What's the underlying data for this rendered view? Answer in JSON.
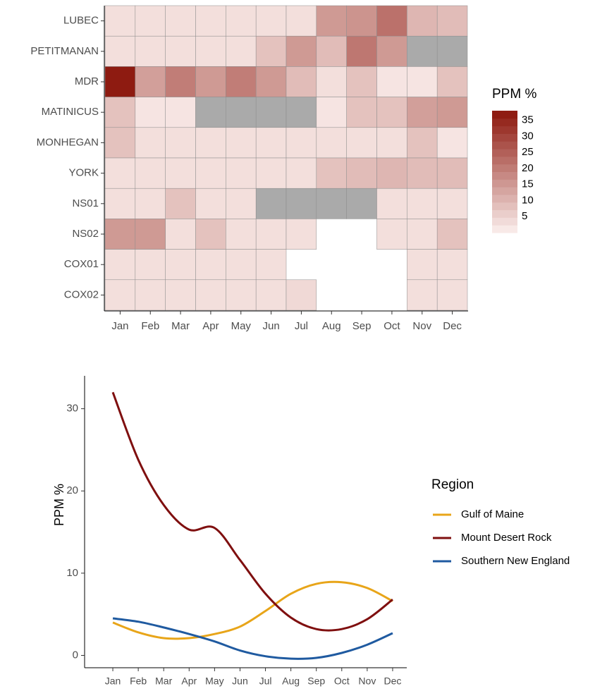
{
  "chart_data": [
    {
      "type": "heatmap",
      "categories": [
        "Jan",
        "Feb",
        "Mar",
        "Apr",
        "May",
        "Jun",
        "Jul",
        "Aug",
        "Sep",
        "Oct",
        "Nov",
        "Dec"
      ],
      "rows": [
        "LUBEC",
        "PETITMANAN",
        "MDR",
        "MATINICUS",
        "MONHEGAN",
        "YORK",
        "NS01",
        "NS02",
        "COX01",
        "COX02"
      ],
      "legend_title": "PPM %",
      "legend_ticks": [
        5,
        10,
        15,
        20,
        25,
        30,
        35
      ],
      "colorscale": {
        "low": "#fcf0ee",
        "high": "#8b150b",
        "lim": [
          0,
          38
        ]
      },
      "na_color": "#aaaaaa",
      "cells": [
        [
          "Jan",
          "LUBEC",
          3
        ],
        [
          "Feb",
          "LUBEC",
          3
        ],
        [
          "Mar",
          "LUBEC",
          3
        ],
        [
          "Apr",
          "LUBEC",
          3
        ],
        [
          "May",
          "LUBEC",
          3
        ],
        [
          "Jun",
          "LUBEC",
          3
        ],
        [
          "Jul",
          "LUBEC",
          3
        ],
        [
          "Aug",
          "LUBEC",
          15
        ],
        [
          "Sep",
          "LUBEC",
          16
        ],
        [
          "Oct",
          "LUBEC",
          22
        ],
        [
          "Nov",
          "LUBEC",
          10
        ],
        [
          "Dec",
          "LUBEC",
          9
        ],
        [
          "Jan",
          "PETITMANAN",
          3
        ],
        [
          "Feb",
          "PETITMANAN",
          3
        ],
        [
          "Mar",
          "PETITMANAN",
          3
        ],
        [
          "Apr",
          "PETITMANAN",
          3
        ],
        [
          "May",
          "PETITMANAN",
          3
        ],
        [
          "Jun",
          "PETITMANAN",
          8
        ],
        [
          "Jul",
          "PETITMANAN",
          15
        ],
        [
          "Aug",
          "PETITMANAN",
          9
        ],
        [
          "Sep",
          "PETITMANAN",
          21
        ],
        [
          "Oct",
          "PETITMANAN",
          15
        ],
        [
          "Nov",
          "PETITMANAN",
          null
        ],
        [
          "Dec",
          "PETITMANAN",
          null
        ],
        [
          "Jan",
          "MDR",
          37
        ],
        [
          "Feb",
          "MDR",
          14
        ],
        [
          "Mar",
          "MDR",
          20
        ],
        [
          "Apr",
          "MDR",
          15
        ],
        [
          "May",
          "MDR",
          20
        ],
        [
          "Jun",
          "MDR",
          15
        ],
        [
          "Jul",
          "MDR",
          9
        ],
        [
          "Aug",
          "MDR",
          3
        ],
        [
          "Sep",
          "MDR",
          8
        ],
        [
          "Oct",
          "MDR",
          2
        ],
        [
          "Nov",
          "MDR",
          2
        ],
        [
          "Dec",
          "MDR",
          8
        ],
        [
          "Jan",
          "MATINICUS",
          8
        ],
        [
          "Feb",
          "MATINICUS",
          2
        ],
        [
          "Mar",
          "MATINICUS",
          2
        ],
        [
          "Apr",
          "MATINICUS",
          null
        ],
        [
          "May",
          "MATINICUS",
          null
        ],
        [
          "Jun",
          "MATINICUS",
          null
        ],
        [
          "Jul",
          "MATINICUS",
          null
        ],
        [
          "Aug",
          "MATINICUS",
          2
        ],
        [
          "Sep",
          "MATINICUS",
          8
        ],
        [
          "Oct",
          "MATINICUS",
          8
        ],
        [
          "Nov",
          "MATINICUS",
          14
        ],
        [
          "Dec",
          "MATINICUS",
          15
        ],
        [
          "Jan",
          "MONHEGAN",
          8
        ],
        [
          "Feb",
          "MONHEGAN",
          3
        ],
        [
          "Mar",
          "MONHEGAN",
          3
        ],
        [
          "Apr",
          "MONHEGAN",
          3
        ],
        [
          "May",
          "MONHEGAN",
          3
        ],
        [
          "Jun",
          "MONHEGAN",
          3
        ],
        [
          "Jul",
          "MONHEGAN",
          3
        ],
        [
          "Aug",
          "MONHEGAN",
          3
        ],
        [
          "Sep",
          "MONHEGAN",
          3
        ],
        [
          "Oct",
          "MONHEGAN",
          3
        ],
        [
          "Nov",
          "MONHEGAN",
          8
        ],
        [
          "Dec",
          "MONHEGAN",
          2
        ],
        [
          "Jan",
          "YORK",
          3
        ],
        [
          "Feb",
          "YORK",
          3
        ],
        [
          "Mar",
          "YORK",
          3
        ],
        [
          "Apr",
          "YORK",
          3
        ],
        [
          "May",
          "YORK",
          3
        ],
        [
          "Jun",
          "YORK",
          3
        ],
        [
          "Jul",
          "YORK",
          3
        ],
        [
          "Aug",
          "YORK",
          8
        ],
        [
          "Sep",
          "YORK",
          9
        ],
        [
          "Oct",
          "YORK",
          10
        ],
        [
          "Nov",
          "YORK",
          9
        ],
        [
          "Dec",
          "YORK",
          9
        ],
        [
          "Jan",
          "NS01",
          3
        ],
        [
          "Feb",
          "NS01",
          3
        ],
        [
          "Mar",
          "NS01",
          8
        ],
        [
          "Apr",
          "NS01",
          3
        ],
        [
          "May",
          "NS01",
          3
        ],
        [
          "Jun",
          "NS01",
          null
        ],
        [
          "Jul",
          "NS01",
          null
        ],
        [
          "Aug",
          "NS01",
          null
        ],
        [
          "Sep",
          "NS01",
          null
        ],
        [
          "Oct",
          "NS01",
          3
        ],
        [
          "Nov",
          "NS01",
          3
        ],
        [
          "Dec",
          "NS01",
          3
        ],
        [
          "Jan",
          "NS02",
          15
        ],
        [
          "Feb",
          "NS02",
          15
        ],
        [
          "Mar",
          "NS02",
          3
        ],
        [
          "Apr",
          "NS02",
          8
        ],
        [
          "May",
          "NS02",
          3
        ],
        [
          "Jun",
          "NS02",
          3
        ],
        [
          "Jul",
          "NS02",
          3
        ],
        [
          "Oct",
          "NS02",
          3
        ],
        [
          "Nov",
          "NS02",
          3
        ],
        [
          "Dec",
          "NS02",
          8
        ],
        [
          "Jan",
          "COX01",
          3
        ],
        [
          "Feb",
          "COX01",
          3
        ],
        [
          "Mar",
          "COX01",
          3
        ],
        [
          "Apr",
          "COX01",
          3
        ],
        [
          "May",
          "COX01",
          3
        ],
        [
          "Jun",
          "COX01",
          3
        ],
        [
          "Nov",
          "COX01",
          3
        ],
        [
          "Dec",
          "COX01",
          3
        ],
        [
          "Jan",
          "COX02",
          3
        ],
        [
          "Feb",
          "COX02",
          3
        ],
        [
          "Mar",
          "COX02",
          3
        ],
        [
          "Apr",
          "COX02",
          3
        ],
        [
          "May",
          "COX02",
          3
        ],
        [
          "Jun",
          "COX02",
          3
        ],
        [
          "Jul",
          "COX02",
          4
        ],
        [
          "Nov",
          "COX02",
          3
        ],
        [
          "Dec",
          "COX02",
          3
        ]
      ]
    },
    {
      "type": "line",
      "categories": [
        "Jan",
        "Feb",
        "Mar",
        "Apr",
        "May",
        "Jun",
        "Jul",
        "Aug",
        "Sep",
        "Oct",
        "Nov",
        "Dec"
      ],
      "y_label": "PPM %",
      "legend_title": "Region",
      "ylim": [
        -1.5,
        34
      ],
      "yticks": [
        0,
        10,
        20,
        30
      ],
      "series": [
        {
          "name": "Gulf of Maine",
          "color": "#e8a519",
          "values": [
            4.0,
            2.8,
            2.1,
            2.1,
            2.6,
            3.5,
            5.4,
            7.5,
            8.7,
            8.9,
            8.2,
            6.6
          ]
        },
        {
          "name": "Mount Desert Rock",
          "color": "#7f0f0f",
          "values": [
            32,
            23.8,
            18.3,
            15.3,
            15.5,
            11.6,
            7.5,
            4.6,
            3.2,
            3.2,
            4.4,
            6.8
          ]
        },
        {
          "name": "Southern New England",
          "color": "#1f5aa0",
          "values": [
            4.5,
            4.1,
            3.4,
            2.6,
            1.7,
            0.6,
            -0.1,
            -0.4,
            -0.3,
            0.3,
            1.3,
            2.7
          ]
        }
      ]
    }
  ]
}
